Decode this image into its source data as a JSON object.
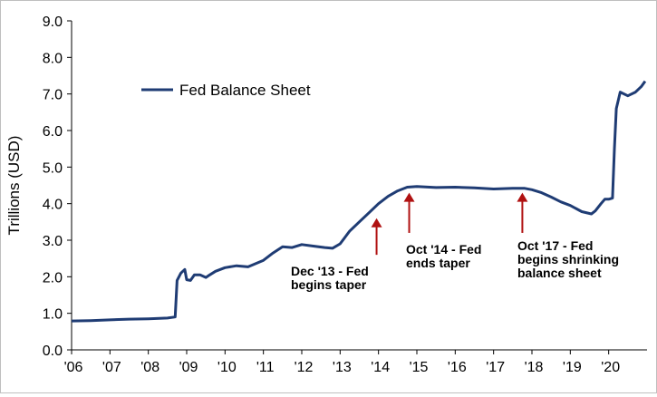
{
  "chart_data": {
    "type": "line",
    "title": "",
    "xlabel": "",
    "ylabel": "Trillions (USD)",
    "ylim": [
      0,
      9
    ],
    "xlim": [
      2006,
      2021
    ],
    "yticks": [
      0,
      1,
      2,
      3,
      4,
      5,
      6,
      7,
      8,
      9
    ],
    "ytick_labels": [
      "0.0",
      "1.0",
      "2.0",
      "3.0",
      "4.0",
      "5.0",
      "6.0",
      "7.0",
      "8.0",
      "9.0"
    ],
    "xticks": [
      2006,
      2007,
      2008,
      2009,
      2010,
      2011,
      2012,
      2013,
      2014,
      2015,
      2016,
      2017,
      2018,
      2019,
      2020
    ],
    "xtick_labels": [
      "'06",
      "'07",
      "'08",
      "'09",
      "'10",
      "'11",
      "'12",
      "'13",
      "'14",
      "'15",
      "'16",
      "'17",
      "'18",
      "'19",
      "'20"
    ],
    "grid": false,
    "legend_position": "top-left",
    "line_color": "#1f3c74",
    "annotation_color": "#b01111",
    "series": [
      {
        "name": "Fed Balance Sheet",
        "x": [
          2006.0,
          2006.5,
          2007.0,
          2007.5,
          2008.0,
          2008.5,
          2008.7,
          2008.75,
          2008.85,
          2008.95,
          2009.0,
          2009.1,
          2009.2,
          2009.35,
          2009.5,
          2009.6,
          2009.75,
          2010.0,
          2010.3,
          2010.6,
          2011.0,
          2011.25,
          2011.5,
          2011.75,
          2012.0,
          2012.3,
          2012.6,
          2012.8,
          2013.0,
          2013.25,
          2013.5,
          2013.75,
          2014.0,
          2014.25,
          2014.5,
          2014.75,
          2015.0,
          2015.5,
          2016.0,
          2016.5,
          2017.0,
          2017.5,
          2017.8,
          2018.0,
          2018.25,
          2018.5,
          2018.75,
          2019.0,
          2019.3,
          2019.55,
          2019.65,
          2019.8,
          2019.9,
          2020.0,
          2020.1,
          2020.15,
          2020.2,
          2020.3,
          2020.5,
          2020.7,
          2020.85,
          2020.95
        ],
        "values": [
          0.79,
          0.8,
          0.82,
          0.84,
          0.85,
          0.87,
          0.9,
          1.9,
          2.1,
          2.2,
          1.92,
          1.9,
          2.05,
          2.05,
          1.98,
          2.05,
          2.15,
          2.25,
          2.3,
          2.27,
          2.45,
          2.65,
          2.82,
          2.8,
          2.88,
          2.84,
          2.8,
          2.78,
          2.9,
          3.25,
          3.5,
          3.75,
          4.0,
          4.2,
          4.35,
          4.45,
          4.47,
          4.44,
          4.45,
          4.43,
          4.4,
          4.42,
          4.42,
          4.38,
          4.3,
          4.18,
          4.05,
          3.95,
          3.78,
          3.72,
          3.8,
          4.0,
          4.12,
          4.12,
          4.15,
          5.5,
          6.6,
          7.05,
          6.95,
          7.05,
          7.2,
          7.35
        ]
      }
    ],
    "annotations": [
      {
        "lines": [
          "Dec '13 - Fed",
          "begins taper"
        ],
        "arrow_x": 2013.95,
        "arrow_tip": 3.6,
        "arrow_base": 2.6
      },
      {
        "lines": [
          "Oct '14 - Fed",
          "ends taper"
        ],
        "arrow_x": 2014.8,
        "arrow_tip": 4.3,
        "arrow_base": 3.2
      },
      {
        "lines": [
          "Oct '17 - Fed",
          "begins shrinking",
          "balance sheet"
        ],
        "arrow_x": 2017.75,
        "arrow_tip": 4.3,
        "arrow_base": 3.2
      }
    ]
  }
}
